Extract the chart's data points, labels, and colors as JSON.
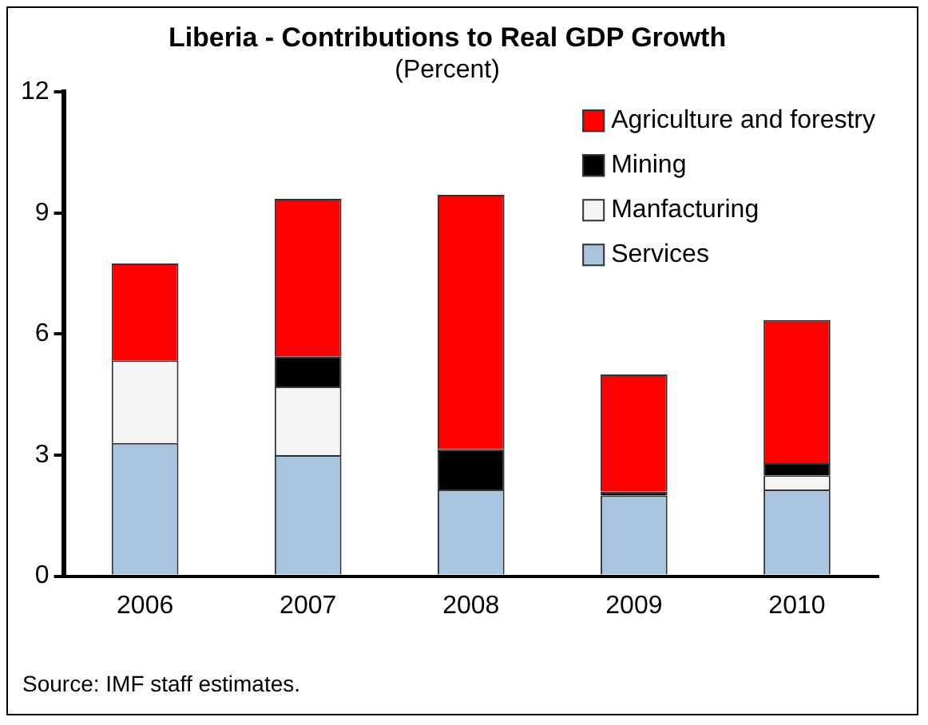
{
  "chart_data": {
    "type": "bar",
    "title": "Liberia - Contributions to Real GDP Growth",
    "subtitle": "(Percent)",
    "categories": [
      "2006",
      "2007",
      "2008",
      "2009",
      "2010"
    ],
    "stacked": true,
    "ylim": [
      0,
      12
    ],
    "yticks": [
      0,
      3,
      6,
      9,
      12
    ],
    "grid": false,
    "legend": "top right",
    "annotations": [
      "Source: IMF staff estimates."
    ],
    "series": [
      {
        "name": "Services",
        "color": "#a9c4e0",
        "values": [
          3.3,
          3.0,
          2.15,
          2.0,
          2.15
        ]
      },
      {
        "name": "Manfacturing",
        "color": "#f4f4f4",
        "values": [
          2.05,
          1.7,
          0,
          0,
          0.35
        ]
      },
      {
        "name": "Mining",
        "color": "#000000",
        "values": [
          0,
          0.75,
          1.0,
          0.1,
          0.3
        ]
      },
      {
        "name": "Agriculture and forestry",
        "color": "#ff0000",
        "values": [
          2.4,
          3.9,
          6.3,
          2.9,
          3.55
        ]
      }
    ]
  }
}
